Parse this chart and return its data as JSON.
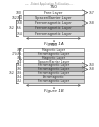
{
  "bg_color": "#ffffff",
  "fig1": {
    "label": "750",
    "layers_top": [
      {
        "label": "700",
        "text": "Free Layer",
        "color": "#ffffff",
        "highlight": false
      },
      {
        "label": "764",
        "text": "Spacer/Barrier Layer",
        "color": "#d8d8d8",
        "highlight": false
      },
      {
        "label": "758",
        "text": "Ferromagnetic Layer",
        "color": "#d8d8d8",
        "highlight": false
      },
      {
        "label": "756",
        "text": "Ferromagnetic Layer",
        "color": "#b0b0b0",
        "highlight": true
      },
      {
        "label": "754",
        "text": "Ferromagnetic Layer",
        "color": "#d8d8d8",
        "highlight": false
      }
    ],
    "brace1_label": "762",
    "brace2_label": "752",
    "right_label1": "757",
    "right_label2": "758",
    "figure_label": "Figure 1A"
  },
  "fig2": {
    "label": "750",
    "layers": [
      {
        "label": "778",
        "text": "Magnetic Layer",
        "color": "#ffffff",
        "highlight": false
      },
      {
        "label": "776",
        "text": "Ferromagnetic Layer",
        "color": "#d8d8d8",
        "highlight": false
      },
      {
        "label": "774",
        "text": "Magnetic Layer",
        "color": "#d8d8d8",
        "highlight": false
      },
      {
        "label": "764",
        "text": "Spacer/Barrier Layer",
        "color": "#ffffff",
        "highlight": false
      },
      {
        "label": "762",
        "text": "Ferromagnetic Layer",
        "color": "#d8d8d8",
        "highlight": false
      },
      {
        "label": "760",
        "text": "Ferromagnetic Layer",
        "color": "#b0b0b0",
        "highlight": true
      },
      {
        "label": "758",
        "text": "Ferromagnetic Layer",
        "color": "#d8d8d8",
        "highlight": false
      },
      {
        "label": "754",
        "text": "Ferromagnetic",
        "color": "#d8d8d8",
        "highlight": false
      },
      {
        "label": "752",
        "text": "Ferromagnetic Layer",
        "color": "#d8d8d8",
        "highlight": false
      }
    ],
    "brace1_label": "770",
    "brace2_label": "752",
    "right_label1": "760",
    "right_label2": "758",
    "figure_label": "Figure 1B"
  }
}
